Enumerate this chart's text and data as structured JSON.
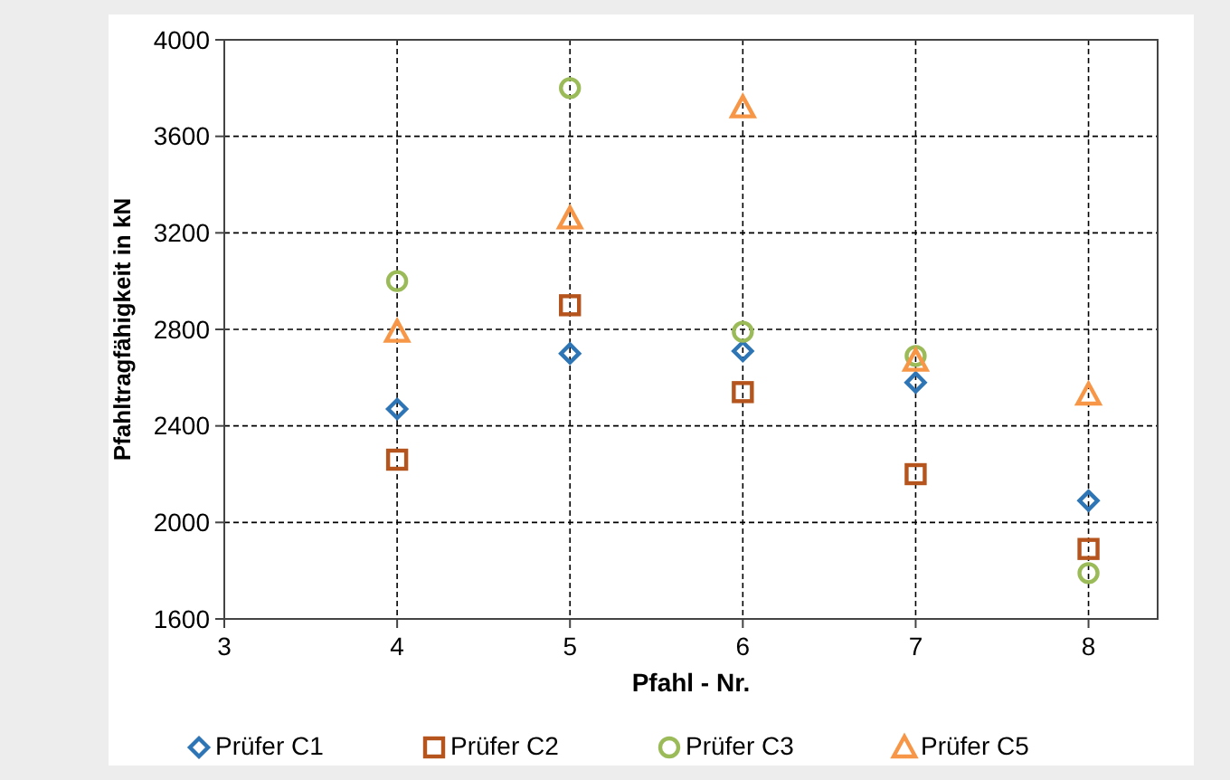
{
  "chart_data": {
    "type": "scatter",
    "xlabel": "Pfahl - Nr.",
    "ylabel": "Pfahltragfähigkeit in kN",
    "xlim": [
      3,
      8.4
    ],
    "xticks": [
      3,
      4,
      5,
      6,
      7,
      8
    ],
    "ylim": [
      1600,
      4000
    ],
    "yticks": [
      1600,
      2000,
      2400,
      2800,
      3200,
      3600,
      4000
    ],
    "grid": true,
    "line_style": "dashed",
    "legend": "bottom",
    "series": [
      {
        "name": "Prüfer C1",
        "color": "#2e75b6",
        "marker": "diamond",
        "x": [
          4,
          5,
          6,
          7,
          8
        ],
        "values": [
          2470,
          2700,
          2710,
          2580,
          2090
        ]
      },
      {
        "name": "Prüfer C2",
        "color": "#b5541c",
        "marker": "square",
        "x": [
          4,
          5,
          6,
          7,
          8
        ],
        "values": [
          2260,
          2900,
          2540,
          2200,
          1890
        ]
      },
      {
        "name": "Prüfer C3",
        "color": "#9bbb59",
        "marker": "circle",
        "x": [
          4,
          5,
          6,
          7,
          8
        ],
        "values": [
          3000,
          3800,
          2790,
          2690,
          1790
        ]
      },
      {
        "name": "Prüfer C5",
        "color": "#f79646",
        "marker": "triangle",
        "x": [
          4,
          5,
          6,
          7,
          8
        ],
        "values": [
          2790,
          3260,
          3720,
          2670,
          2530
        ]
      }
    ]
  }
}
